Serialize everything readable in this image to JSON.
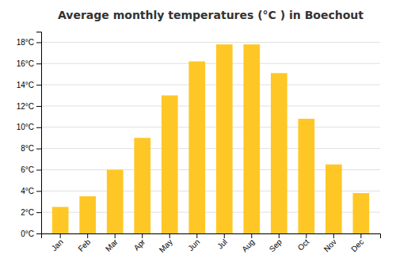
{
  "chart_data": {
    "type": "bar",
    "title": "Average monthly temperatures (°C ) in Boechout",
    "categories": [
      "Jan",
      "Feb",
      "Mar",
      "Apr",
      "May",
      "Jun",
      "Jul",
      "Aug",
      "Sep",
      "Oct",
      "Nov",
      "Dec"
    ],
    "values": [
      2.5,
      3.5,
      6.0,
      9.0,
      13.0,
      16.2,
      17.8,
      17.8,
      15.1,
      10.8,
      6.5,
      3.8
    ],
    "color": "#FFC726",
    "ylim": [
      0,
      19
    ],
    "yticks": [
      {
        "value": 0,
        "label": "0°C"
      },
      {
        "value": 2,
        "label": "2°C"
      },
      {
        "value": 4,
        "label": "4°C"
      },
      {
        "value": 6,
        "label": "6°C"
      },
      {
        "value": 8,
        "label": "8°C"
      },
      {
        "value": 10,
        "label": "10°C"
      },
      {
        "value": 12,
        "label": "12°C"
      },
      {
        "value": 14,
        "label": "14°C"
      },
      {
        "value": 16,
        "label": "16°C"
      },
      {
        "value": 18,
        "label": "18°C"
      }
    ],
    "grid": true
  }
}
